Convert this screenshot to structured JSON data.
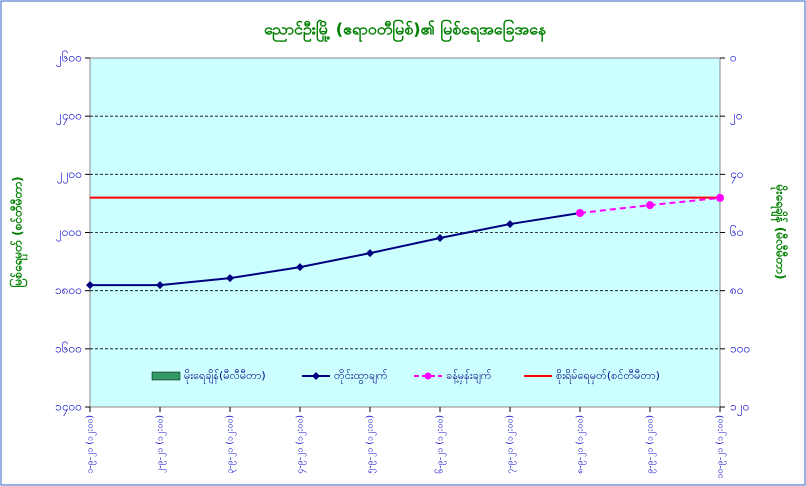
{
  "chart_data": {
    "type": "line",
    "title": "ညောင်ဦးမြို့ (ဧရာဝတီမြစ်)၏ မြစ်ရေအခြေအနေ",
    "y_label": "မြစ်ရေမှတ် (စင်တီမီတာ)",
    "y2_label": "မိုးရေချိန် (မီလီမီတာ)",
    "categories": [
      "၁-၉-၂၁ (၁၂:၀၀)",
      "၂-၉-၂၁ (၁၂:၀၀)",
      "၃-၉-၂၁ (၁၂:၀၀)",
      "၄-၉-၂၁ (၁၂:၀၀)",
      "၅-၉-၂၁ (၁၂:၀၀)",
      "၆-၉-၂၁ (၁၂:၀၀)",
      "၇-၉-၂၁ (၁၂:၀၀)",
      "၈-၉-၂၁ (၁၂:၀၀)",
      "၉-၉-၂၁ (၁၂:၀၀)",
      "၁၀-၉-၂၁ (၁၂:၀၀)"
    ],
    "series": [
      {
        "name": "မိုးရေချိန်(မီလီမီတာ)",
        "color": "#339966",
        "kind": "bar",
        "axis": "y2",
        "values": [
          null,
          null,
          null,
          null,
          null,
          null,
          null,
          null,
          null,
          null
        ]
      },
      {
        "name": "တိုင်းထွာချက်",
        "color": "#000080",
        "kind": "line",
        "values": [
          1819,
          1819,
          1843,
          1881,
          1929,
          1981,
          2029,
          2067,
          null,
          null
        ]
      },
      {
        "name": "ခန့်မှန်းချက်",
        "color": "#ff00ff",
        "kind": "dashed",
        "values": [
          null,
          null,
          null,
          null,
          null,
          null,
          null,
          2067,
          2094,
          2119
        ]
      }
    ],
    "danger": {
      "name": "စိုးရိမ်ရေမှတ်(စင်တီမီတာ)",
      "color": "#ff0000",
      "value": 2120
    },
    "ylim": [
      1400,
      2600
    ],
    "yticks": [
      {
        "value": 1400,
        "label": "၁၄၀၀"
      },
      {
        "value": 1600,
        "label": "၁၆၀၀"
      },
      {
        "value": 1800,
        "label": "၁၈၀၀"
      },
      {
        "value": 2000,
        "label": "၂၀၀၀"
      },
      {
        "value": 2200,
        "label": "၂၂၀၀"
      },
      {
        "value": 2400,
        "label": "၂၄၀၀"
      },
      {
        "value": 2600,
        "label": "၂၆၀၀"
      }
    ],
    "y2lim": [
      120,
      0
    ],
    "y2ticks": [
      {
        "value": 0,
        "label": "၀"
      },
      {
        "value": 20,
        "label": "၂၀"
      },
      {
        "value": 40,
        "label": "၄၀"
      },
      {
        "value": 60,
        "label": "၆၀"
      },
      {
        "value": 80,
        "label": "၈၀"
      },
      {
        "value": 100,
        "label": "၁၀၀"
      },
      {
        "value": 120,
        "label": "၁၂၀"
      }
    ],
    "grid": true
  }
}
